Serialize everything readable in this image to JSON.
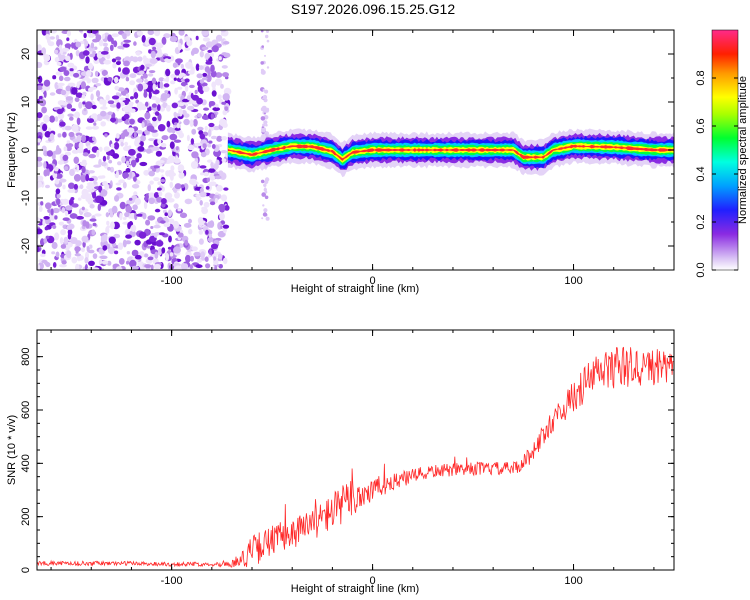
{
  "title": "S197.2026.096.15.25.G12",
  "chart_data": [
    {
      "type": "heatmap",
      "panel": "spectrogram",
      "xlabel": "Height of straight line (km)",
      "ylabel": "Frequency (Hz)",
      "xlim": [
        -167,
        150
      ],
      "ylim": [
        -25,
        25
      ],
      "xticks": [
        -100,
        0,
        100
      ],
      "yticks": [
        -20,
        -10,
        0,
        10,
        20
      ],
      "colorbar": {
        "label": "Normalized spectral amplitude",
        "range": [
          0,
          1
        ],
        "ticks": [
          "0.0",
          "0.2",
          "0.4",
          "0.6",
          "0.8"
        ],
        "tick_values": [
          0.0,
          0.2,
          0.4,
          0.6,
          0.8
        ],
        "colormap": [
          "#e8d8f8",
          "#8a2be2",
          "#0000ff",
          "#00e5ff",
          "#00ff00",
          "#ffff00",
          "#ff9900",
          "#ff0000",
          "#ff1493"
        ]
      },
      "noise_region_x": [
        -167,
        -72
      ],
      "track": {
        "x": [
          -72,
          -60,
          -50,
          -40,
          -30,
          -20,
          -15,
          -10,
          0,
          20,
          40,
          60,
          70,
          75,
          80,
          85,
          90,
          100,
          120,
          140,
          150
        ],
        "freq": [
          0,
          -1,
          0,
          0.8,
          0.7,
          -0.3,
          -2,
          -0.5,
          0,
          0,
          0,
          0,
          0,
          -1.5,
          -1.5,
          -1.5,
          0,
          0.8,
          0.6,
          0,
          0
        ]
      }
    },
    {
      "type": "line",
      "panel": "snr",
      "xlabel": "Height of straight line (km)",
      "ylabel": "SNR (10 * v/v)",
      "xlim": [
        -167,
        150
      ],
      "ylim": [
        0,
        900
      ],
      "xticks": [
        -100,
        0,
        100
      ],
      "yticks": [
        0,
        200,
        400,
        600,
        800
      ],
      "color": "#ff2a2a",
      "series": [
        {
          "name": "SNR",
          "x": [
            -167,
            -140,
            -120,
            -100,
            -80,
            -68,
            -60,
            -50,
            -40,
            -30,
            -20,
            -10,
            0,
            10,
            20,
            30,
            40,
            50,
            60,
            70,
            75,
            80,
            90,
            100,
            110,
            120,
            130,
            140,
            150
          ],
          "y": [
            25,
            25,
            25,
            22,
            22,
            25,
            70,
            110,
            140,
            170,
            220,
            270,
            300,
            330,
            350,
            370,
            375,
            380,
            380,
            380,
            400,
            450,
            560,
            650,
            730,
            760,
            760,
            760,
            750
          ],
          "amp": [
            8,
            8,
            8,
            8,
            8,
            15,
            60,
            60,
            60,
            60,
            70,
            80,
            50,
            30,
            30,
            25,
            25,
            25,
            25,
            25,
            30,
            40,
            40,
            60,
            80,
            80,
            80,
            70,
            60
          ]
        }
      ]
    }
  ]
}
